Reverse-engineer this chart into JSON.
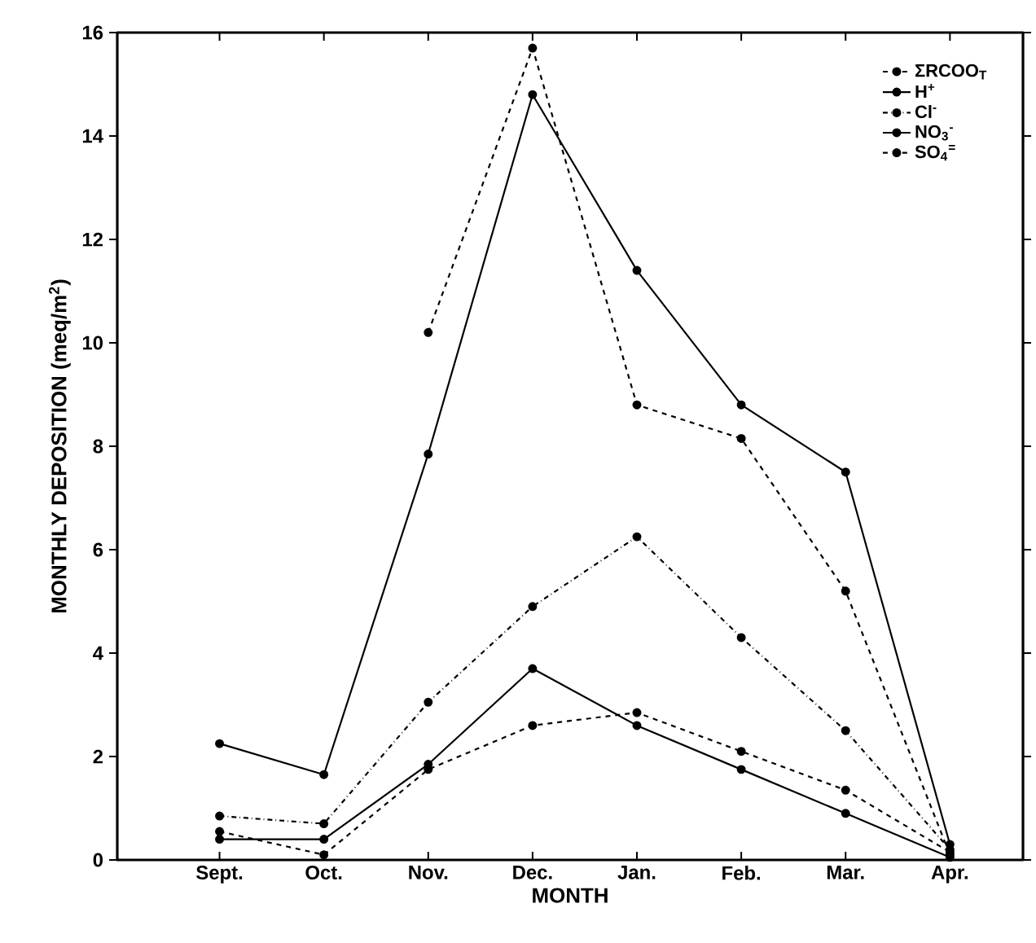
{
  "chart_data": {
    "type": "line",
    "xlabel": "MONTH",
    "ylabel": "MONTHLY DEPOSITION (meq/m$^{2}$)",
    "categories": [
      "Sept.",
      "Oct.",
      "Nov.",
      "Dec.",
      "Jan.",
      "Feb.",
      "Mar.",
      "Apr."
    ],
    "ylim": [
      0,
      16
    ],
    "yticks": [
      0,
      2,
      4,
      6,
      8,
      10,
      12,
      14,
      16
    ],
    "grid": false,
    "legend": "top right",
    "marker": "circle",
    "series": [
      {
        "name": "ΣRCOO$_{T}$",
        "color": "#000000",
        "line_style": "dashed",
        "values": [
          null,
          null,
          10.2,
          15.7,
          8.8,
          8.15,
          5.2,
          0.1
        ]
      },
      {
        "name": "H$^{+}$",
        "color": "#000000",
        "line_style": "solid",
        "values": [
          2.25,
          1.65,
          7.85,
          14.8,
          11.4,
          8.8,
          7.5,
          0.3
        ]
      },
      {
        "name": "Cl$^{-}$",
        "color": "#000000",
        "line_style": "dashdot",
        "values": [
          0.85,
          0.7,
          3.05,
          4.9,
          6.25,
          4.3,
          2.5,
          0.2
        ]
      },
      {
        "name": "NO$_{3}$$^{-}$",
        "color": "#000000",
        "line_style": "solid",
        "values": [
          0.4,
          0.4,
          1.85,
          3.7,
          2.6,
          1.75,
          0.9,
          0.05
        ]
      },
      {
        "name": "SO$_{4}$$^{=}$",
        "color": "#000000",
        "line_style": "dashed",
        "values": [
          0.55,
          0.1,
          1.75,
          2.6,
          2.85,
          2.1,
          1.35,
          0.15
        ]
      }
    ]
  }
}
